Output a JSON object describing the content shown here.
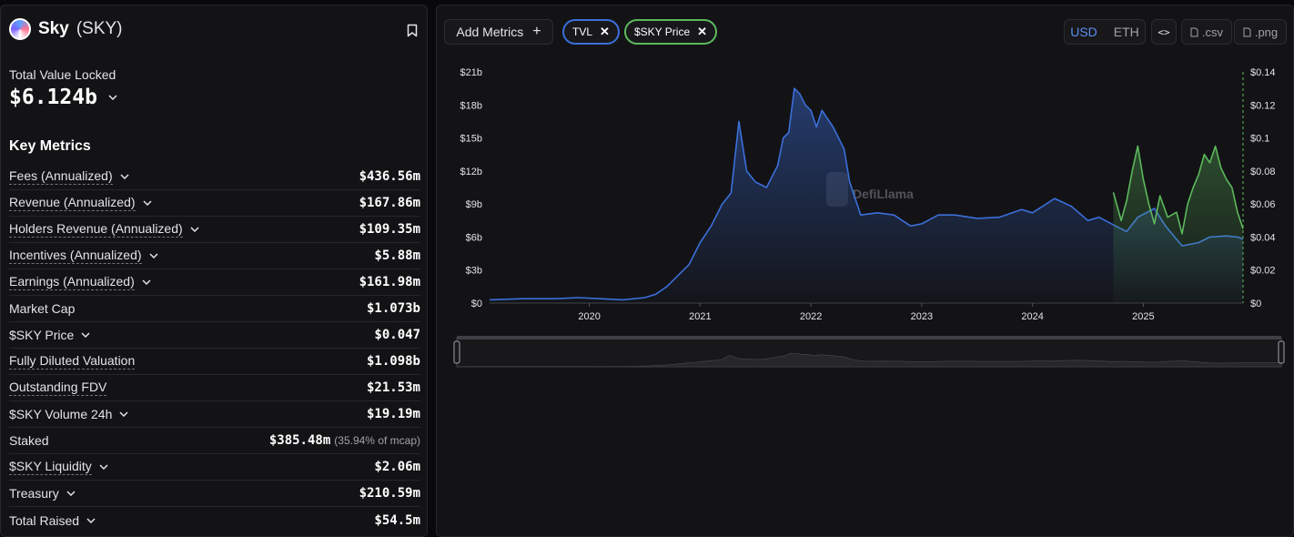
{
  "protocol": {
    "name": "Sky",
    "ticker": "(SKY)"
  },
  "tvl": {
    "label": "Total Value Locked",
    "value": "$6.124b"
  },
  "key_metrics": {
    "title": "Key Metrics",
    "rows": [
      {
        "label": "Fees (Annualized)",
        "value": "$436.56m",
        "dotted": true,
        "chevron": true
      },
      {
        "label": "Revenue (Annualized)",
        "value": "$167.86m",
        "dotted": true,
        "chevron": true
      },
      {
        "label": "Holders Revenue (Annualized)",
        "value": "$109.35m",
        "dotted": true,
        "chevron": true
      },
      {
        "label": "Incentives (Annualized)",
        "value": "$5.88m",
        "dotted": true,
        "chevron": true
      },
      {
        "label": "Earnings (Annualized)",
        "value": "$161.98m",
        "dotted": true,
        "chevron": true
      },
      {
        "label": "Market Cap",
        "value": "$1.073b",
        "dotted": false,
        "chevron": false
      },
      {
        "label": "$SKY Price",
        "value": "$0.047",
        "dotted": false,
        "chevron": true
      },
      {
        "label": "Fully Diluted Valuation",
        "value": "$1.098b",
        "dotted": true,
        "chevron": false
      },
      {
        "label": "Outstanding FDV",
        "value": "$21.53m",
        "dotted": true,
        "chevron": false
      },
      {
        "label": "$SKY Volume 24h",
        "value": "$19.19m",
        "dotted": false,
        "chevron": true
      },
      {
        "label": "Staked",
        "value": "$385.48m",
        "sub": "(35.94% of mcap)",
        "dotted": false,
        "chevron": false
      },
      {
        "label": "$SKY Liquidity",
        "value": "$2.06m",
        "dotted": true,
        "chevron": true
      },
      {
        "label": "Treasury",
        "value": "$210.59m",
        "dotted": false,
        "chevron": true
      },
      {
        "label": "Total Raised",
        "value": "$54.5m",
        "dotted": false,
        "chevron": true
      }
    ]
  },
  "toolbar": {
    "add_metrics": "Add Metrics",
    "chips": [
      "TVL",
      "$SKY Price"
    ],
    "currency_usd": "USD",
    "currency_eth": "ETH",
    "embed": "<>",
    "csv": ".csv",
    "png": ".png"
  },
  "watermark": "DefiLlama",
  "colors": {
    "tvl": "#3b6fd9",
    "price": "#5cb85c",
    "accent": "#5b8def"
  },
  "chart_data": {
    "type": "line",
    "x_ticks": [
      "2020",
      "2021",
      "2022",
      "2023",
      "2024",
      "2025"
    ],
    "left_axis": {
      "ticks": [
        "$0",
        "$3b",
        "$6b",
        "$9b",
        "$12b",
        "$15b",
        "$18b",
        "$21b"
      ],
      "ylim": [
        0,
        21
      ]
    },
    "right_axis": {
      "ticks": [
        "$0",
        "$0.02",
        "$0.04",
        "$0.06",
        "$0.08",
        "$0.1",
        "$0.12",
        "$0.14"
      ],
      "ylim": [
        0,
        0.14
      ]
    },
    "xlim": [
      2019.1,
      2025.9
    ],
    "series": [
      {
        "name": "TVL",
        "axis": "left",
        "points": [
          [
            2019.1,
            0.3
          ],
          [
            2019.4,
            0.4
          ],
          [
            2019.7,
            0.4
          ],
          [
            2019.9,
            0.5
          ],
          [
            2020.1,
            0.4
          ],
          [
            2020.3,
            0.3
          ],
          [
            2020.5,
            0.5
          ],
          [
            2020.6,
            0.8
          ],
          [
            2020.7,
            1.5
          ],
          [
            2020.8,
            2.5
          ],
          [
            2020.9,
            3.5
          ],
          [
            2021.0,
            5.5
          ],
          [
            2021.1,
            7.0
          ],
          [
            2021.2,
            9.0
          ],
          [
            2021.28,
            10.0
          ],
          [
            2021.35,
            16.5
          ],
          [
            2021.42,
            12.0
          ],
          [
            2021.5,
            11.0
          ],
          [
            2021.6,
            10.5
          ],
          [
            2021.7,
            12.5
          ],
          [
            2021.75,
            15.0
          ],
          [
            2021.8,
            15.5
          ],
          [
            2021.85,
            19.5
          ],
          [
            2021.9,
            19.0
          ],
          [
            2021.95,
            18.0
          ],
          [
            2022.0,
            17.5
          ],
          [
            2022.05,
            16.0
          ],
          [
            2022.1,
            17.5
          ],
          [
            2022.2,
            16.0
          ],
          [
            2022.3,
            14.0
          ],
          [
            2022.35,
            11.0
          ],
          [
            2022.45,
            8.0
          ],
          [
            2022.6,
            8.2
          ],
          [
            2022.75,
            8.0
          ],
          [
            2022.9,
            7.0
          ],
          [
            2023.0,
            7.2
          ],
          [
            2023.15,
            8.0
          ],
          [
            2023.3,
            8.0
          ],
          [
            2023.5,
            7.7
          ],
          [
            2023.7,
            7.8
          ],
          [
            2023.9,
            8.5
          ],
          [
            2024.0,
            8.2
          ],
          [
            2024.2,
            9.5
          ],
          [
            2024.35,
            8.8
          ],
          [
            2024.5,
            7.5
          ],
          [
            2024.6,
            7.8
          ],
          [
            2024.75,
            7.0
          ],
          [
            2024.85,
            6.5
          ],
          [
            2024.95,
            7.8
          ],
          [
            2025.1,
            8.6
          ],
          [
            2025.2,
            7.0
          ],
          [
            2025.35,
            5.2
          ],
          [
            2025.5,
            5.5
          ],
          [
            2025.6,
            6.0
          ],
          [
            2025.75,
            6.1
          ],
          [
            2025.85,
            6.0
          ],
          [
            2025.9,
            5.8
          ]
        ]
      },
      {
        "name": "$SKY Price",
        "axis": "right",
        "points": [
          [
            2024.73,
            0.067
          ],
          [
            2024.8,
            0.05
          ],
          [
            2024.85,
            0.062
          ],
          [
            2024.9,
            0.08
          ],
          [
            2024.95,
            0.095
          ],
          [
            2025.0,
            0.075
          ],
          [
            2025.05,
            0.06
          ],
          [
            2025.1,
            0.048
          ],
          [
            2025.15,
            0.065
          ],
          [
            2025.22,
            0.052
          ],
          [
            2025.3,
            0.055
          ],
          [
            2025.35,
            0.042
          ],
          [
            2025.4,
            0.06
          ],
          [
            2025.45,
            0.07
          ],
          [
            2025.5,
            0.078
          ],
          [
            2025.55,
            0.09
          ],
          [
            2025.6,
            0.085
          ],
          [
            2025.65,
            0.095
          ],
          [
            2025.7,
            0.082
          ],
          [
            2025.75,
            0.075
          ],
          [
            2025.8,
            0.07
          ],
          [
            2025.85,
            0.055
          ],
          [
            2025.9,
            0.045
          ]
        ]
      }
    ]
  }
}
